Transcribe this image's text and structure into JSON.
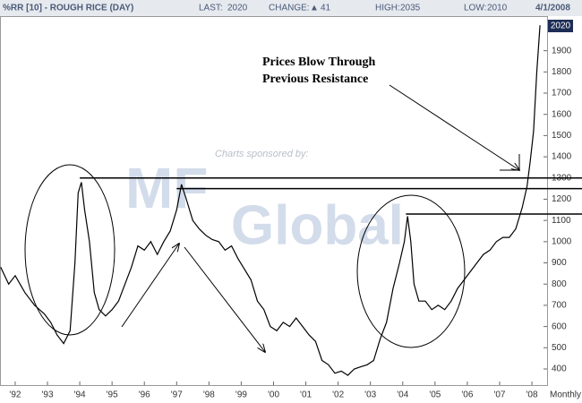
{
  "chart_data": {
    "type": "line",
    "header": {
      "symbol": "%RR [10] - ROUGH RICE (DAY)",
      "last_label": "LAST:",
      "last": 2020,
      "change_label": "CHANGE:",
      "change_arrow": "▲",
      "change": 41,
      "high_label": "HIGH:",
      "high": 2035,
      "low_label": "LOW:",
      "low": 2010,
      "date": "4/1/2008"
    },
    "watermark": {
      "sponsor": "Charts sponsored by:",
      "logo_a": "MF",
      "logo_b": "Global"
    },
    "annotation": [
      "Prices Blow Through",
      "Previous Resistance"
    ],
    "frequency": "Monthly",
    "resistance_levels": [
      1300,
      1250,
      1130
    ],
    "resistance_starts": [
      1994.0,
      1997.0,
      2004.1
    ],
    "color": "#000000",
    "xlim": [
      1991.53,
      2008.47
    ],
    "ylim": [
      324,
      2063
    ],
    "xticks": [
      {
        "value": 1992,
        "label": "'92"
      },
      {
        "value": 1993,
        "label": "'93"
      },
      {
        "value": 1994,
        "label": "'94"
      },
      {
        "value": 1995,
        "label": "'95"
      },
      {
        "value": 1996,
        "label": "'96"
      },
      {
        "value": 1997,
        "label": "'97"
      },
      {
        "value": 1998,
        "label": "'98"
      },
      {
        "value": 1999,
        "label": "'99"
      },
      {
        "value": 2000,
        "label": "'00"
      },
      {
        "value": 2001,
        "label": "'01"
      },
      {
        "value": 2002,
        "label": "'02"
      },
      {
        "value": 2003,
        "label": "'03"
      },
      {
        "value": 2004,
        "label": "'04"
      },
      {
        "value": 2005,
        "label": "'05"
      },
      {
        "value": 2006,
        "label": "'06"
      },
      {
        "value": 2007,
        "label": "'07"
      },
      {
        "value": 2008,
        "label": "'08"
      }
    ],
    "yticks": [
      400,
      500,
      600,
      700,
      800,
      900,
      1000,
      1100,
      1200,
      1300,
      1400,
      1500,
      1600,
      1700,
      1800,
      1900
    ],
    "x": [
      1991.55,
      1991.8,
      1992.0,
      1992.3,
      1992.6,
      1992.9,
      1993.1,
      1993.3,
      1993.5,
      1993.7,
      1993.85,
      1993.95,
      1994.05,
      1994.15,
      1994.3,
      1994.45,
      1994.6,
      1994.8,
      1995.0,
      1995.2,
      1995.4,
      1995.6,
      1995.8,
      1996.0,
      1996.2,
      1996.4,
      1996.6,
      1996.8,
      1997.0,
      1997.15,
      1997.3,
      1997.5,
      1997.7,
      1997.9,
      1998.1,
      1998.3,
      1998.5,
      1998.7,
      1998.9,
      1999.1,
      1999.3,
      1999.5,
      1999.7,
      1999.9,
      2000.1,
      2000.3,
      2000.5,
      2000.7,
      2000.9,
      2001.1,
      2001.3,
      2001.5,
      2001.7,
      2001.9,
      2002.1,
      2002.3,
      2002.5,
      2002.7,
      2002.9,
      2003.1,
      2003.3,
      2003.5,
      2003.7,
      2003.9,
      2004.05,
      2004.15,
      2004.25,
      2004.35,
      2004.5,
      2004.7,
      2004.9,
      2005.1,
      2005.3,
      2005.5,
      2005.7,
      2005.9,
      2006.1,
      2006.3,
      2006.5,
      2006.7,
      2006.9,
      2007.1,
      2007.3,
      2007.5,
      2007.7,
      2007.85,
      2007.95,
      2008.05,
      2008.15,
      2008.25
    ],
    "values": [
      880,
      800,
      840,
      760,
      700,
      660,
      620,
      560,
      520,
      580,
      900,
      1230,
      1280,
      1150,
      1000,
      760,
      680,
      650,
      680,
      720,
      800,
      880,
      980,
      960,
      1000,
      940,
      1000,
      1050,
      1150,
      1270,
      1200,
      1100,
      1060,
      1030,
      1010,
      1000,
      960,
      980,
      920,
      870,
      820,
      720,
      680,
      600,
      580,
      620,
      600,
      640,
      600,
      560,
      530,
      440,
      420,
      380,
      390,
      370,
      400,
      410,
      420,
      440,
      540,
      620,
      780,
      900,
      1000,
      1120,
      1000,
      800,
      720,
      720,
      680,
      700,
      680,
      720,
      780,
      820,
      860,
      900,
      940,
      960,
      1000,
      1020,
      1020,
      1060,
      1160,
      1260,
      1380,
      1520,
      1800,
      2020
    ]
  }
}
